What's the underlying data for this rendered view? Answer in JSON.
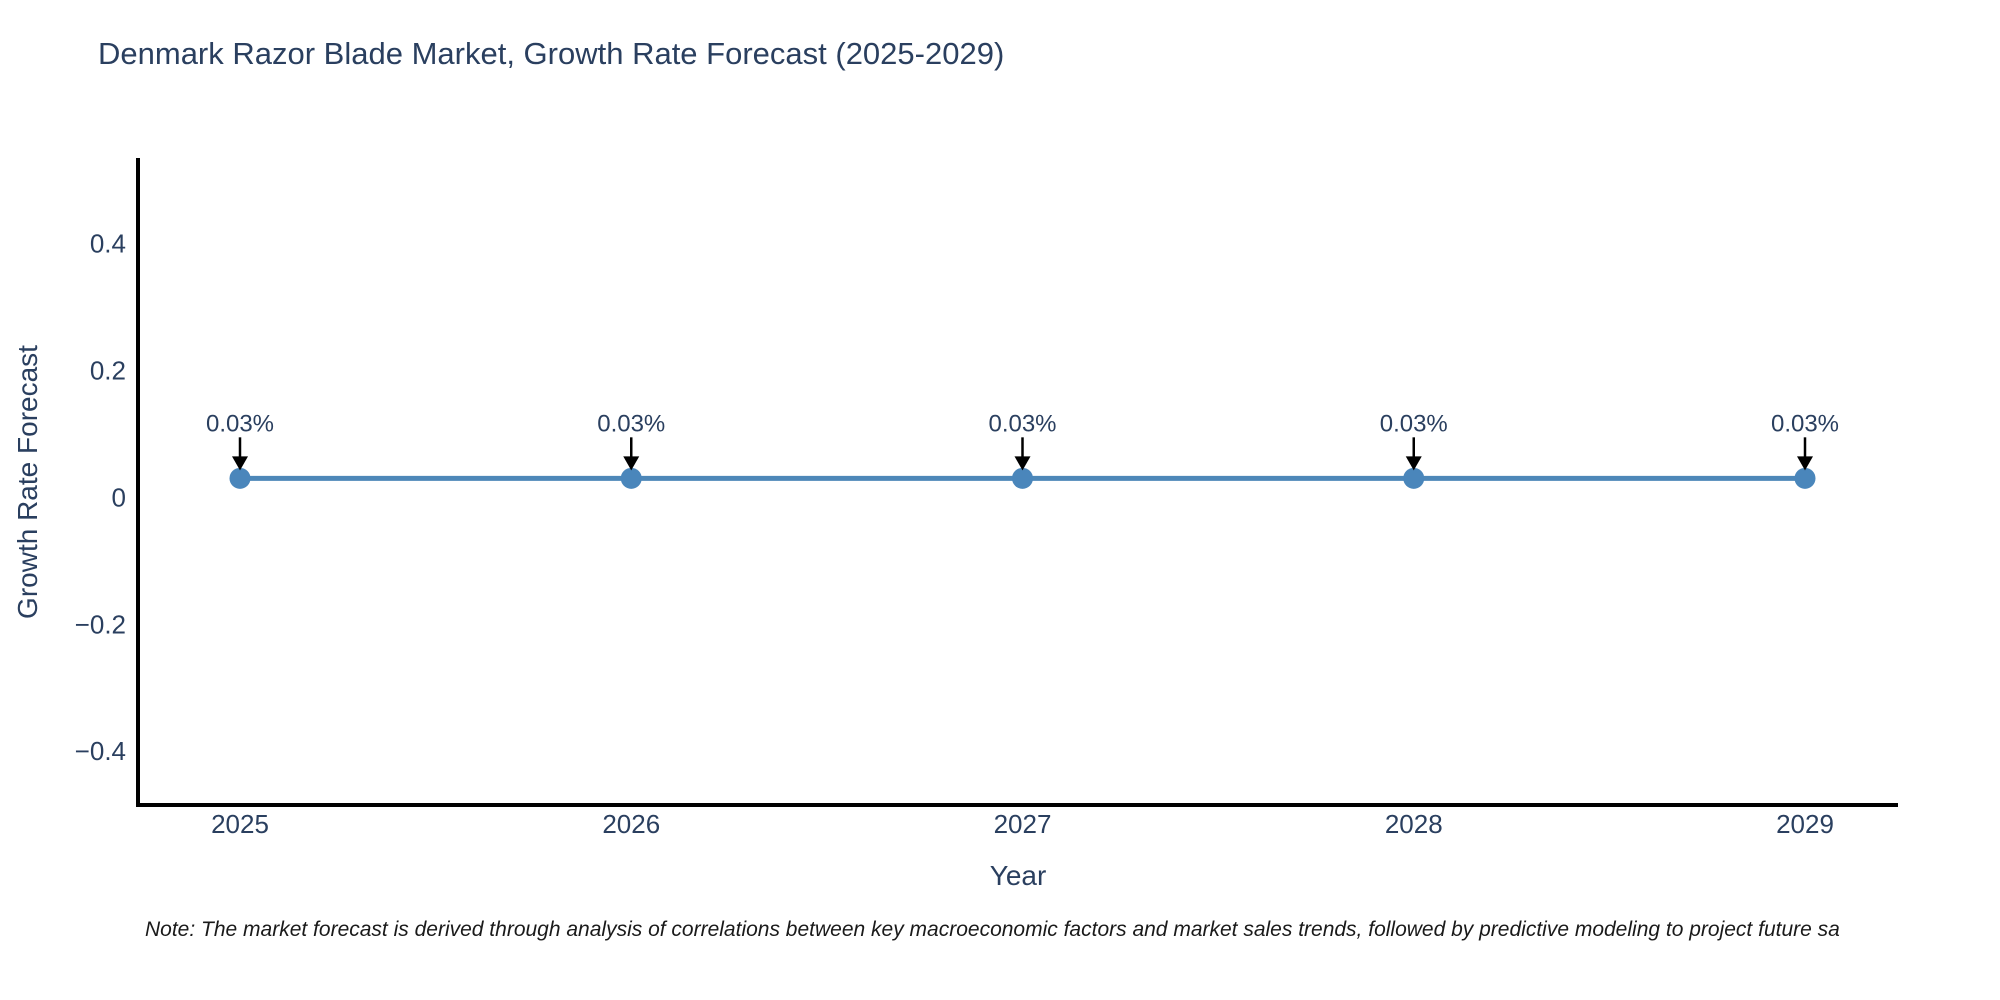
{
  "title": "Denmark Razor Blade Market, Growth Rate Forecast (2025-2029)",
  "note": "Note: The market forecast is derived through analysis of correlations between key macroeconomic factors and market sales trends, followed by predictive modeling to project future sa",
  "colors": {
    "text": "#2a3f5f",
    "line": "#4d87b8",
    "marker": "#4a86bb",
    "axis": "#000000",
    "arrow": "#000000",
    "background": "#ffffff"
  },
  "chart_data": {
    "type": "line",
    "title": "Denmark Razor Blade Market, Growth Rate Forecast (2025-2029)",
    "categories": [
      "2025",
      "2026",
      "2027",
      "2028",
      "2029"
    ],
    "values": [
      0.03,
      0.03,
      0.03,
      0.03,
      0.03
    ],
    "point_labels": [
      "0.03%",
      "0.03%",
      "0.03%",
      "0.03%",
      "0.03%"
    ],
    "xlabel": "Year",
    "ylabel": "Growth Rate Forecast",
    "ylim": [
      -0.485,
      0.535
    ],
    "yticks": [
      {
        "value": 0.4,
        "label": "0.4"
      },
      {
        "value": 0.2,
        "label": "0.2"
      },
      {
        "value": 0,
        "label": "0"
      },
      {
        "value": -0.2,
        "label": "−0.2"
      },
      {
        "value": -0.4,
        "label": "−0.4"
      }
    ],
    "grid": false,
    "legend": "none"
  }
}
